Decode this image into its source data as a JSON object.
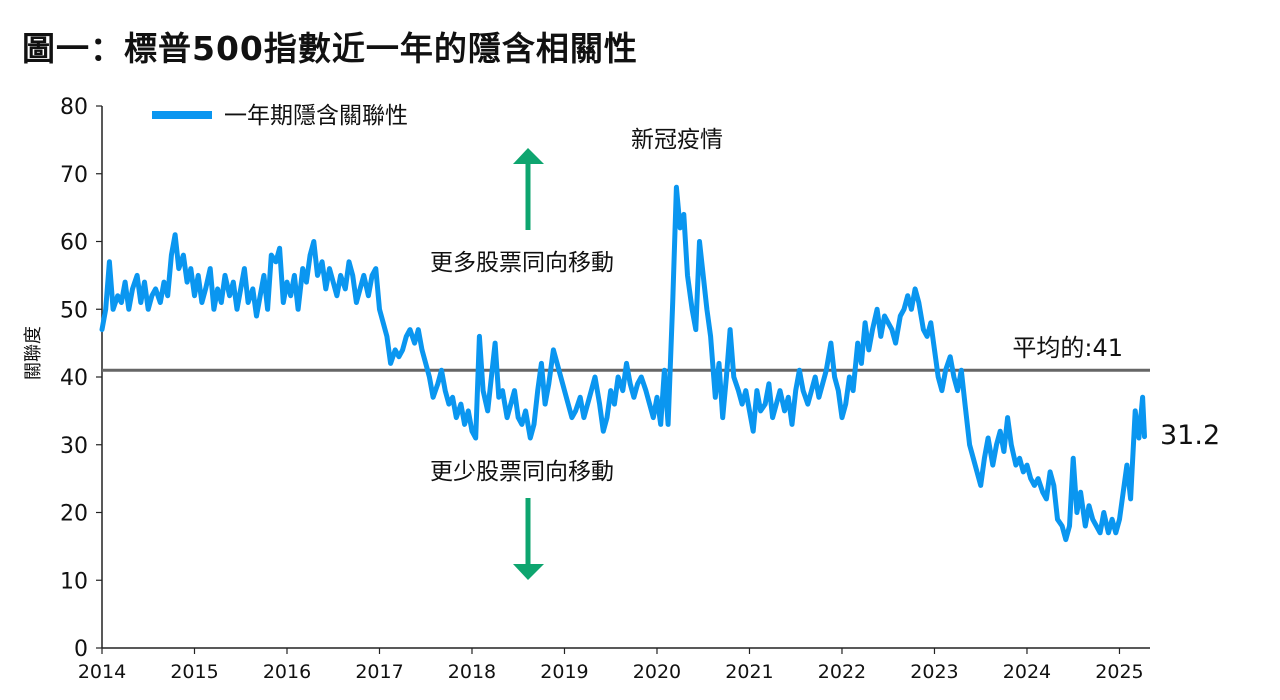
{
  "title": "圖一：標普500指數近一年的隱含相關性",
  "chart_data": {
    "type": "line",
    "ylabel": "關聯度",
    "xlabel": "",
    "ylim": [
      0,
      80
    ],
    "yticks": [
      0,
      10,
      20,
      30,
      40,
      50,
      60,
      70,
      80
    ],
    "xlim": [
      2014.0,
      2025.33
    ],
    "xticks": [
      "2014",
      "2015",
      "2016",
      "2017",
      "2018",
      "2019",
      "2020",
      "2021",
      "2022",
      "2023",
      "2024",
      "2025"
    ],
    "grid": false,
    "legend": {
      "position": "top-left",
      "label": "一年期隱含關聯性"
    },
    "series": [
      {
        "name": "一年期隱含關聯性",
        "color": "#0a96f0",
        "points": [
          [
            2014.0,
            47
          ],
          [
            2014.04,
            50
          ],
          [
            2014.08,
            57
          ],
          [
            2014.12,
            50
          ],
          [
            2014.17,
            52
          ],
          [
            2014.21,
            51
          ],
          [
            2014.25,
            54
          ],
          [
            2014.29,
            50
          ],
          [
            2014.33,
            53
          ],
          [
            2014.38,
            55
          ],
          [
            2014.42,
            51
          ],
          [
            2014.46,
            54
          ],
          [
            2014.5,
            50
          ],
          [
            2014.54,
            52
          ],
          [
            2014.58,
            53
          ],
          [
            2014.63,
            51
          ],
          [
            2014.67,
            54
          ],
          [
            2014.71,
            52
          ],
          [
            2014.75,
            58
          ],
          [
            2014.79,
            61
          ],
          [
            2014.83,
            56
          ],
          [
            2014.88,
            58
          ],
          [
            2014.92,
            54
          ],
          [
            2014.96,
            56
          ],
          [
            2015.0,
            52
          ],
          [
            2015.04,
            55
          ],
          [
            2015.08,
            51
          ],
          [
            2015.12,
            53
          ],
          [
            2015.17,
            56
          ],
          [
            2015.21,
            50
          ],
          [
            2015.25,
            53
          ],
          [
            2015.29,
            51
          ],
          [
            2015.33,
            55
          ],
          [
            2015.38,
            52
          ],
          [
            2015.42,
            54
          ],
          [
            2015.46,
            50
          ],
          [
            2015.5,
            53
          ],
          [
            2015.54,
            56
          ],
          [
            2015.58,
            51
          ],
          [
            2015.63,
            53
          ],
          [
            2015.67,
            49
          ],
          [
            2015.71,
            52
          ],
          [
            2015.75,
            55
          ],
          [
            2015.79,
            50
          ],
          [
            2015.83,
            58
          ],
          [
            2015.88,
            57
          ],
          [
            2015.92,
            59
          ],
          [
            2015.96,
            51
          ],
          [
            2016.0,
            54
          ],
          [
            2016.04,
            52
          ],
          [
            2016.08,
            55
          ],
          [
            2016.12,
            50
          ],
          [
            2016.17,
            56
          ],
          [
            2016.21,
            54
          ],
          [
            2016.25,
            58
          ],
          [
            2016.29,
            60
          ],
          [
            2016.33,
            55
          ],
          [
            2016.38,
            57
          ],
          [
            2016.42,
            53
          ],
          [
            2016.46,
            56
          ],
          [
            2016.5,
            54
          ],
          [
            2016.54,
            52
          ],
          [
            2016.58,
            55
          ],
          [
            2016.63,
            53
          ],
          [
            2016.67,
            57
          ],
          [
            2016.71,
            55
          ],
          [
            2016.75,
            51
          ],
          [
            2016.79,
            53
          ],
          [
            2016.83,
            55
          ],
          [
            2016.88,
            52
          ],
          [
            2016.92,
            55
          ],
          [
            2016.96,
            56
          ],
          [
            2017.0,
            50
          ],
          [
            2017.04,
            48
          ],
          [
            2017.08,
            46
          ],
          [
            2017.12,
            42
          ],
          [
            2017.17,
            44
          ],
          [
            2017.21,
            43
          ],
          [
            2017.25,
            44
          ],
          [
            2017.29,
            46
          ],
          [
            2017.33,
            47
          ],
          [
            2017.38,
            45
          ],
          [
            2017.42,
            47
          ],
          [
            2017.46,
            44
          ],
          [
            2017.5,
            42
          ],
          [
            2017.54,
            40
          ],
          [
            2017.58,
            37
          ],
          [
            2017.63,
            39
          ],
          [
            2017.67,
            41
          ],
          [
            2017.71,
            38
          ],
          [
            2017.75,
            36
          ],
          [
            2017.79,
            37
          ],
          [
            2017.83,
            34
          ],
          [
            2017.88,
            36
          ],
          [
            2017.92,
            33
          ],
          [
            2017.96,
            35
          ],
          [
            2018.0,
            32
          ],
          [
            2018.04,
            31
          ],
          [
            2018.08,
            46
          ],
          [
            2018.12,
            38
          ],
          [
            2018.17,
            35
          ],
          [
            2018.21,
            40
          ],
          [
            2018.25,
            45
          ],
          [
            2018.29,
            37
          ],
          [
            2018.33,
            38
          ],
          [
            2018.38,
            34
          ],
          [
            2018.42,
            36
          ],
          [
            2018.46,
            38
          ],
          [
            2018.5,
            34
          ],
          [
            2018.54,
            33
          ],
          [
            2018.58,
            35
          ],
          [
            2018.63,
            31
          ],
          [
            2018.67,
            33
          ],
          [
            2018.71,
            38
          ],
          [
            2018.75,
            42
          ],
          [
            2018.79,
            36
          ],
          [
            2018.83,
            39
          ],
          [
            2018.88,
            44
          ],
          [
            2018.92,
            42
          ],
          [
            2018.96,
            40
          ],
          [
            2019.0,
            38
          ],
          [
            2019.04,
            36
          ],
          [
            2019.08,
            34
          ],
          [
            2019.12,
            35
          ],
          [
            2019.17,
            37
          ],
          [
            2019.21,
            34
          ],
          [
            2019.25,
            36
          ],
          [
            2019.29,
            38
          ],
          [
            2019.33,
            40
          ],
          [
            2019.38,
            36
          ],
          [
            2019.42,
            32
          ],
          [
            2019.46,
            34
          ],
          [
            2019.5,
            38
          ],
          [
            2019.54,
            36
          ],
          [
            2019.58,
            40
          ],
          [
            2019.63,
            38
          ],
          [
            2019.67,
            42
          ],
          [
            2019.71,
            39
          ],
          [
            2019.75,
            37
          ],
          [
            2019.79,
            39
          ],
          [
            2019.83,
            40
          ],
          [
            2019.88,
            38
          ],
          [
            2019.92,
            36
          ],
          [
            2019.96,
            34
          ],
          [
            2020.0,
            37
          ],
          [
            2020.04,
            33
          ],
          [
            2020.08,
            41
          ],
          [
            2020.12,
            33
          ],
          [
            2020.17,
            51
          ],
          [
            2020.21,
            68
          ],
          [
            2020.25,
            62
          ],
          [
            2020.29,
            64
          ],
          [
            2020.33,
            55
          ],
          [
            2020.38,
            50
          ],
          [
            2020.42,
            47
          ],
          [
            2020.46,
            60
          ],
          [
            2020.5,
            55
          ],
          [
            2020.54,
            50
          ],
          [
            2020.58,
            46
          ],
          [
            2020.63,
            37
          ],
          [
            2020.67,
            42
          ],
          [
            2020.71,
            34
          ],
          [
            2020.75,
            40
          ],
          [
            2020.79,
            47
          ],
          [
            2020.83,
            40
          ],
          [
            2020.88,
            38
          ],
          [
            2020.92,
            36
          ],
          [
            2020.96,
            38
          ],
          [
            2021.0,
            35
          ],
          [
            2021.04,
            32
          ],
          [
            2021.08,
            38
          ],
          [
            2021.12,
            35
          ],
          [
            2021.17,
            36
          ],
          [
            2021.21,
            39
          ],
          [
            2021.25,
            34
          ],
          [
            2021.29,
            36
          ],
          [
            2021.33,
            38
          ],
          [
            2021.38,
            35
          ],
          [
            2021.42,
            37
          ],
          [
            2021.46,
            33
          ],
          [
            2021.5,
            38
          ],
          [
            2021.54,
            41
          ],
          [
            2021.58,
            38
          ],
          [
            2021.63,
            36
          ],
          [
            2021.67,
            38
          ],
          [
            2021.71,
            40
          ],
          [
            2021.75,
            37
          ],
          [
            2021.79,
            39
          ],
          [
            2021.83,
            41
          ],
          [
            2021.88,
            45
          ],
          [
            2021.92,
            40
          ],
          [
            2021.96,
            38
          ],
          [
            2022.0,
            34
          ],
          [
            2022.04,
            36
          ],
          [
            2022.08,
            40
          ],
          [
            2022.12,
            38
          ],
          [
            2022.17,
            45
          ],
          [
            2022.21,
            42
          ],
          [
            2022.25,
            48
          ],
          [
            2022.29,
            44
          ],
          [
            2022.33,
            47
          ],
          [
            2022.38,
            50
          ],
          [
            2022.42,
            46
          ],
          [
            2022.46,
            49
          ],
          [
            2022.5,
            48
          ],
          [
            2022.54,
            47
          ],
          [
            2022.58,
            45
          ],
          [
            2022.63,
            49
          ],
          [
            2022.67,
            50
          ],
          [
            2022.71,
            52
          ],
          [
            2022.75,
            50
          ],
          [
            2022.79,
            53
          ],
          [
            2022.83,
            51
          ],
          [
            2022.88,
            47
          ],
          [
            2022.92,
            46
          ],
          [
            2022.96,
            48
          ],
          [
            2023.0,
            44
          ],
          [
            2023.04,
            40
          ],
          [
            2023.08,
            38
          ],
          [
            2023.12,
            41
          ],
          [
            2023.17,
            43
          ],
          [
            2023.21,
            40
          ],
          [
            2023.25,
            38
          ],
          [
            2023.29,
            41
          ],
          [
            2023.33,
            36
          ],
          [
            2023.38,
            30
          ],
          [
            2023.42,
            28
          ],
          [
            2023.46,
            26
          ],
          [
            2023.5,
            24
          ],
          [
            2023.54,
            28
          ],
          [
            2023.58,
            31
          ],
          [
            2023.63,
            27
          ],
          [
            2023.67,
            30
          ],
          [
            2023.71,
            32
          ],
          [
            2023.75,
            29
          ],
          [
            2023.79,
            34
          ],
          [
            2023.83,
            30
          ],
          [
            2023.88,
            27
          ],
          [
            2023.92,
            28
          ],
          [
            2023.96,
            26
          ],
          [
            2024.0,
            27
          ],
          [
            2024.04,
            25
          ],
          [
            2024.08,
            24
          ],
          [
            2024.12,
            25
          ],
          [
            2024.17,
            23
          ],
          [
            2024.21,
            22
          ],
          [
            2024.25,
            26
          ],
          [
            2024.29,
            24
          ],
          [
            2024.33,
            19
          ],
          [
            2024.38,
            18
          ],
          [
            2024.42,
            16
          ],
          [
            2024.46,
            18
          ],
          [
            2024.5,
            28
          ],
          [
            2024.54,
            20
          ],
          [
            2024.58,
            23
          ],
          [
            2024.63,
            18
          ],
          [
            2024.67,
            21
          ],
          [
            2024.71,
            19
          ],
          [
            2024.75,
            18
          ],
          [
            2024.79,
            17
          ],
          [
            2024.83,
            20
          ],
          [
            2024.88,
            17
          ],
          [
            2024.92,
            19
          ],
          [
            2024.96,
            17
          ],
          [
            2025.0,
            19
          ],
          [
            2025.04,
            23
          ],
          [
            2025.08,
            27
          ],
          [
            2025.12,
            22
          ],
          [
            2025.17,
            35
          ],
          [
            2025.21,
            31
          ],
          [
            2025.25,
            37
          ],
          [
            2025.27,
            31.2
          ]
        ]
      }
    ],
    "reference_line": {
      "value": 41,
      "label": "平均的:41",
      "color": "#666666"
    },
    "annotations": [
      {
        "text": "新冠疫情"
      },
      {
        "text": "更多股票同向移動",
        "arrow": "up",
        "arrow_color": "#0ea56f"
      },
      {
        "text": "更少股票同向移動",
        "arrow": "down",
        "arrow_color": "#0ea56f"
      },
      {
        "text": "31.2"
      }
    ]
  }
}
